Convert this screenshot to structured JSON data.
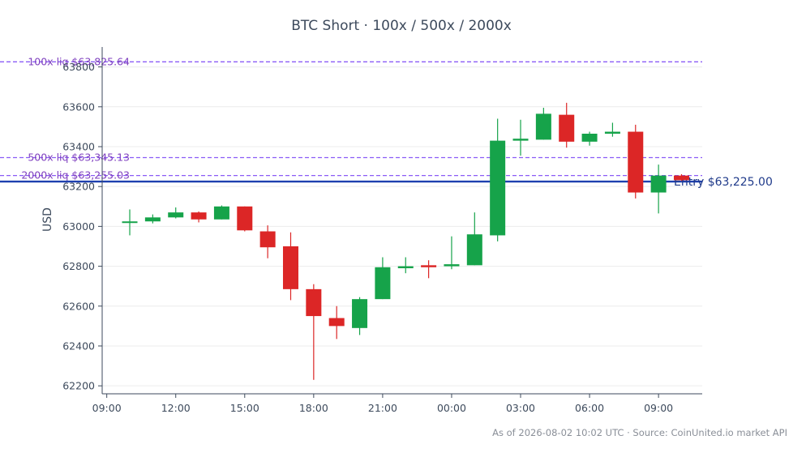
{
  "chart_data": {
    "type": "candlestick",
    "title": "BTC Short · 100x / 500x / 2000x",
    "ylabel": "USD",
    "ylim": [
      62160,
      63900
    ],
    "yticks": [
      62200,
      62400,
      62600,
      62800,
      63000,
      63200,
      63400,
      63600,
      63800
    ],
    "xlim": [
      8.8,
      34.9
    ],
    "xticks": [
      {
        "label": "09:00",
        "hour": 9
      },
      {
        "label": "12:00",
        "hour": 12
      },
      {
        "label": "15:00",
        "hour": 15
      },
      {
        "label": "18:00",
        "hour": 18
      },
      {
        "label": "21:00",
        "hour": 21
      },
      {
        "label": "00:00",
        "hour": 24
      },
      {
        "label": "03:00",
        "hour": 27
      },
      {
        "label": "06:00",
        "hour": 30
      },
      {
        "label": "09:00",
        "hour": 33
      }
    ],
    "grid": true,
    "colors": {
      "up": "#16a34a",
      "down": "#dc2626",
      "liq": "#8b5cf6",
      "entry": "#1e40af"
    },
    "candles": [
      {
        "hour": 10,
        "open": 63020,
        "high": 63085,
        "low": 62955,
        "close": 63025
      },
      {
        "hour": 11,
        "open": 63025,
        "high": 63060,
        "low": 63015,
        "close": 63045
      },
      {
        "hour": 12,
        "open": 63045,
        "high": 63095,
        "low": 63040,
        "close": 63070
      },
      {
        "hour": 13,
        "open": 63070,
        "high": 63075,
        "low": 63020,
        "close": 63035
      },
      {
        "hour": 14,
        "open": 63035,
        "high": 63105,
        "low": 63035,
        "close": 63100
      },
      {
        "hour": 15,
        "open": 63100,
        "high": 63100,
        "low": 62975,
        "close": 62980
      },
      {
        "hour": 16,
        "open": 62975,
        "high": 63005,
        "low": 62840,
        "close": 62895
      },
      {
        "hour": 17,
        "open": 62900,
        "high": 62970,
        "low": 62630,
        "close": 62685
      },
      {
        "hour": 18,
        "open": 62685,
        "high": 62710,
        "low": 62230,
        "close": 62550
      },
      {
        "hour": 19,
        "open": 62540,
        "high": 62600,
        "low": 62435,
        "close": 62500
      },
      {
        "hour": 20,
        "open": 62490,
        "high": 62645,
        "low": 62455,
        "close": 62635
      },
      {
        "hour": 21,
        "open": 62635,
        "high": 62845,
        "low": 62635,
        "close": 62795
      },
      {
        "hour": 22,
        "open": 62790,
        "high": 62845,
        "low": 62765,
        "close": 62800
      },
      {
        "hour": 23,
        "open": 62805,
        "high": 62830,
        "low": 62740,
        "close": 62795
      },
      {
        "hour": 24,
        "open": 62800,
        "high": 62950,
        "low": 62785,
        "close": 62810
      },
      {
        "hour": 25,
        "open": 62805,
        "high": 63070,
        "low": 62805,
        "close": 62960
      },
      {
        "hour": 26,
        "open": 62955,
        "high": 63540,
        "low": 62925,
        "close": 63430
      },
      {
        "hour": 27,
        "open": 63430,
        "high": 63535,
        "low": 63355,
        "close": 63440
      },
      {
        "hour": 28,
        "open": 63435,
        "high": 63595,
        "low": 63435,
        "close": 63565
      },
      {
        "hour": 29,
        "open": 63560,
        "high": 63620,
        "low": 63395,
        "close": 63425
      },
      {
        "hour": 30,
        "open": 63425,
        "high": 63475,
        "low": 63405,
        "close": 63465
      },
      {
        "hour": 31,
        "open": 63465,
        "high": 63520,
        "low": 63450,
        "close": 63475
      },
      {
        "hour": 32,
        "open": 63475,
        "high": 63510,
        "low": 63140,
        "close": 63170
      },
      {
        "hour": 33,
        "open": 63170,
        "high": 63310,
        "low": 63065,
        "close": 63255
      },
      {
        "hour": 34,
        "open": 63255,
        "high": 63262,
        "low": 63228,
        "close": 63232
      }
    ],
    "lines": [
      {
        "label": "100x liq $63,825.64",
        "value": 63825.64,
        "style": "dashed"
      },
      {
        "label": "500x liq $63,345.13",
        "value": 63345.13,
        "style": "dashed"
      },
      {
        "label": "2000x liq $63,255.03",
        "value": 63255.03,
        "style": "dashed"
      },
      {
        "label": "Entry $63,225.00",
        "value": 63225.0,
        "style": "solid"
      }
    ]
  },
  "footer": "As of 2026-08-02 10:02 UTC · Source: CoinUnited.io market API"
}
